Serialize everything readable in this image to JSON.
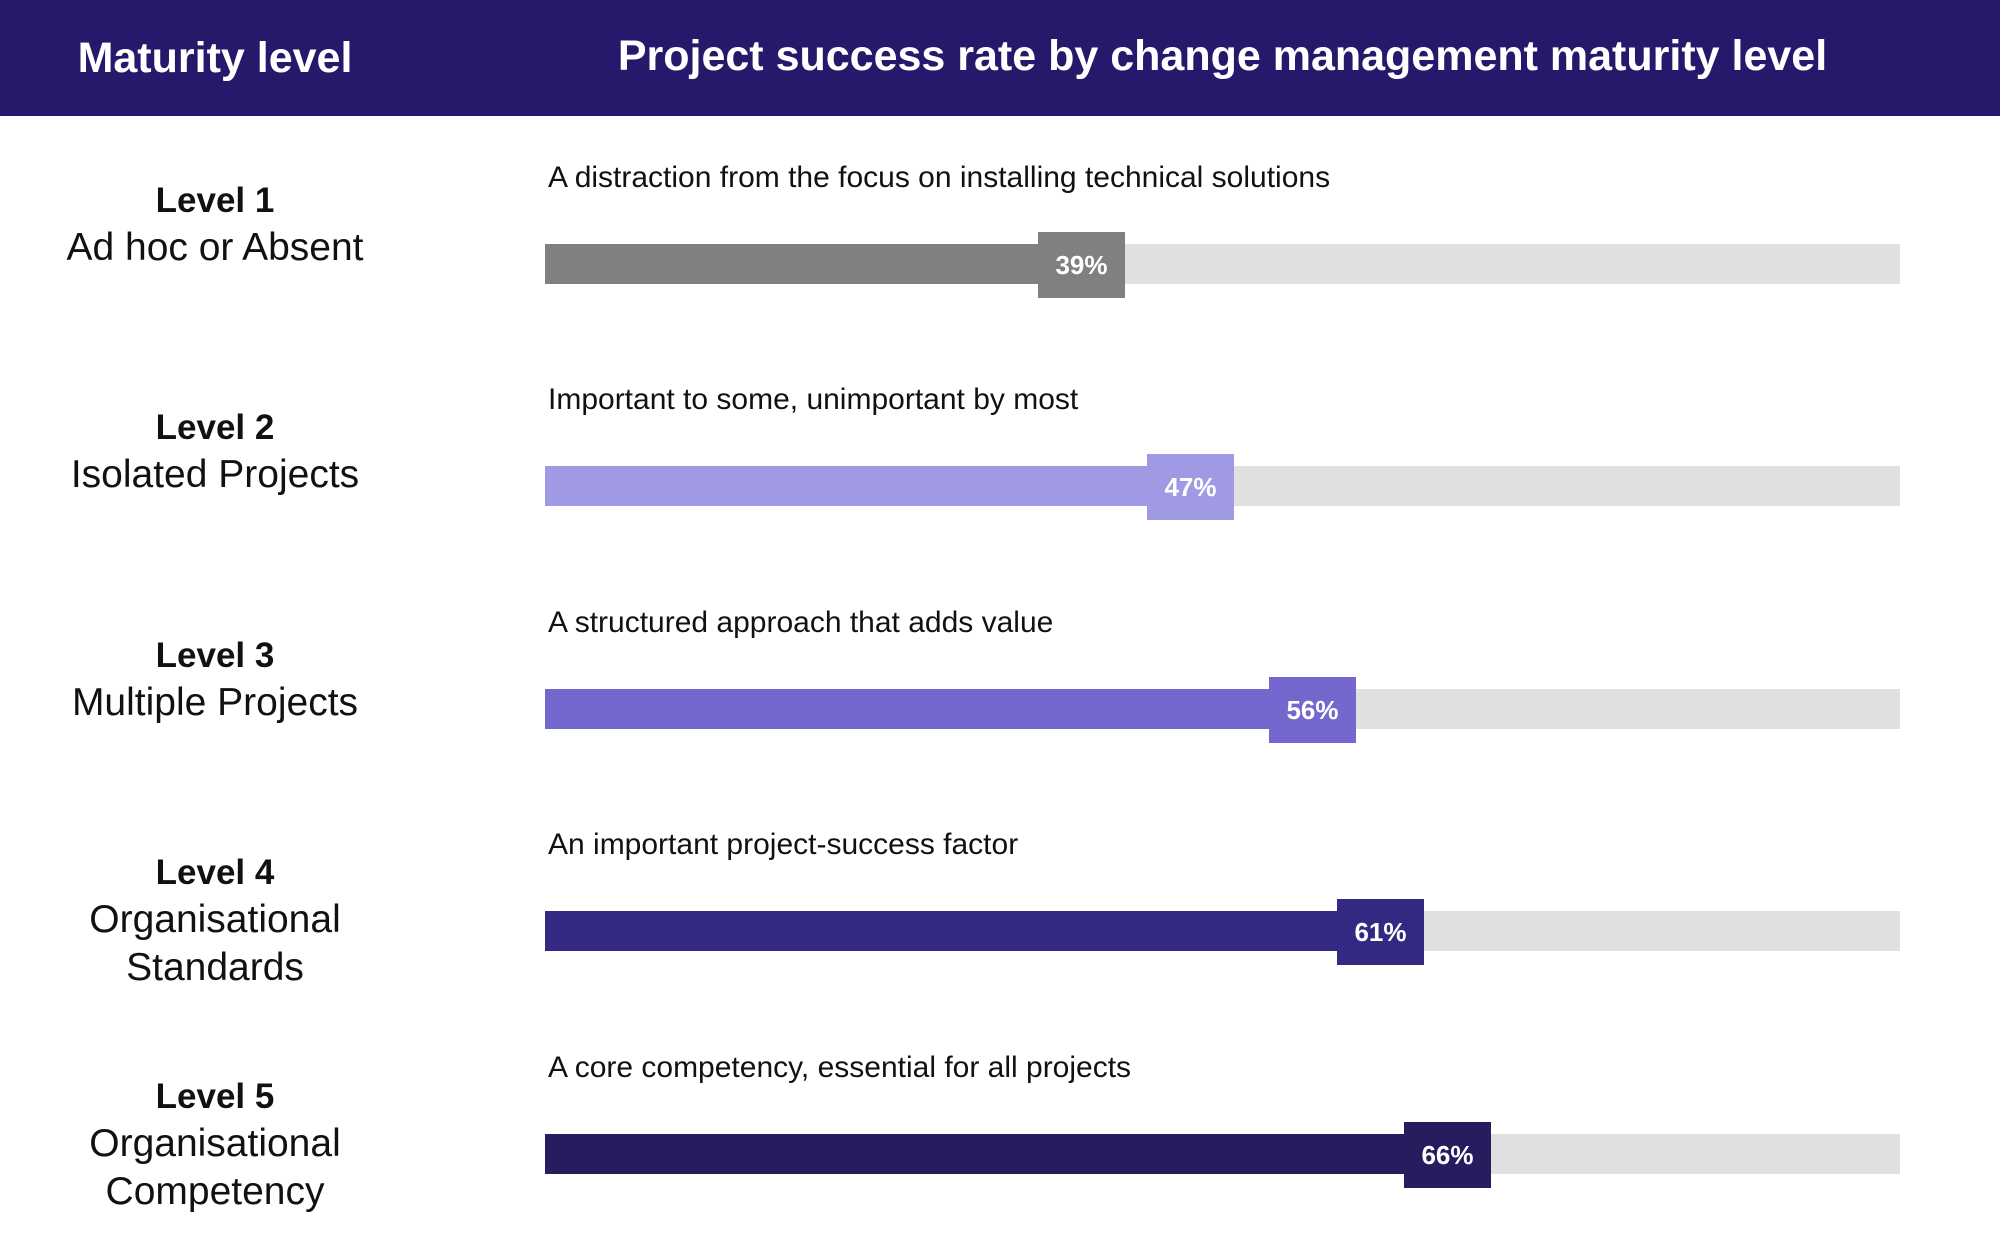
{
  "header": {
    "left_title": "Maturity level",
    "right_title": "Project success rate by change management maturity level",
    "background": "#26186b"
  },
  "colors": {
    "track": "#e0e0e0"
  },
  "chart_data": {
    "type": "bar",
    "title": "Project success rate by change management maturity level",
    "category_header": "Maturity level",
    "xlim": [
      0,
      100
    ],
    "value_suffix": "%",
    "categories": [
      "Level 1",
      "Level 2",
      "Level 3",
      "Level 4",
      "Level 5"
    ],
    "values": [
      39,
      47,
      56,
      61,
      66
    ],
    "rows": [
      {
        "level": "Level 1",
        "name": "Ad hoc or Absent",
        "description": "A distraction from the focus on installing technical solutions",
        "value": 39,
        "label": "39%",
        "color": "#808080"
      },
      {
        "level": "Level 2",
        "name": "Isolated Projects",
        "description": "Important to some, unimportant by most",
        "value": 47,
        "label": "47%",
        "color": "#a09ae4"
      },
      {
        "level": "Level 3",
        "name": "Multiple Projects",
        "description": "A structured approach that adds value",
        "value": 56,
        "label": "56%",
        "color": "#7468cf"
      },
      {
        "level": "Level 4",
        "name": "Organisational Standards",
        "description": "An important project-success factor",
        "value": 61,
        "label": "61%",
        "color": "#332982"
      },
      {
        "level": "Level 5",
        "name": "Organisational Competency",
        "description": "A core competency, essential for all projects",
        "value": 66,
        "label": "66%",
        "color": "#261d5e"
      }
    ]
  }
}
